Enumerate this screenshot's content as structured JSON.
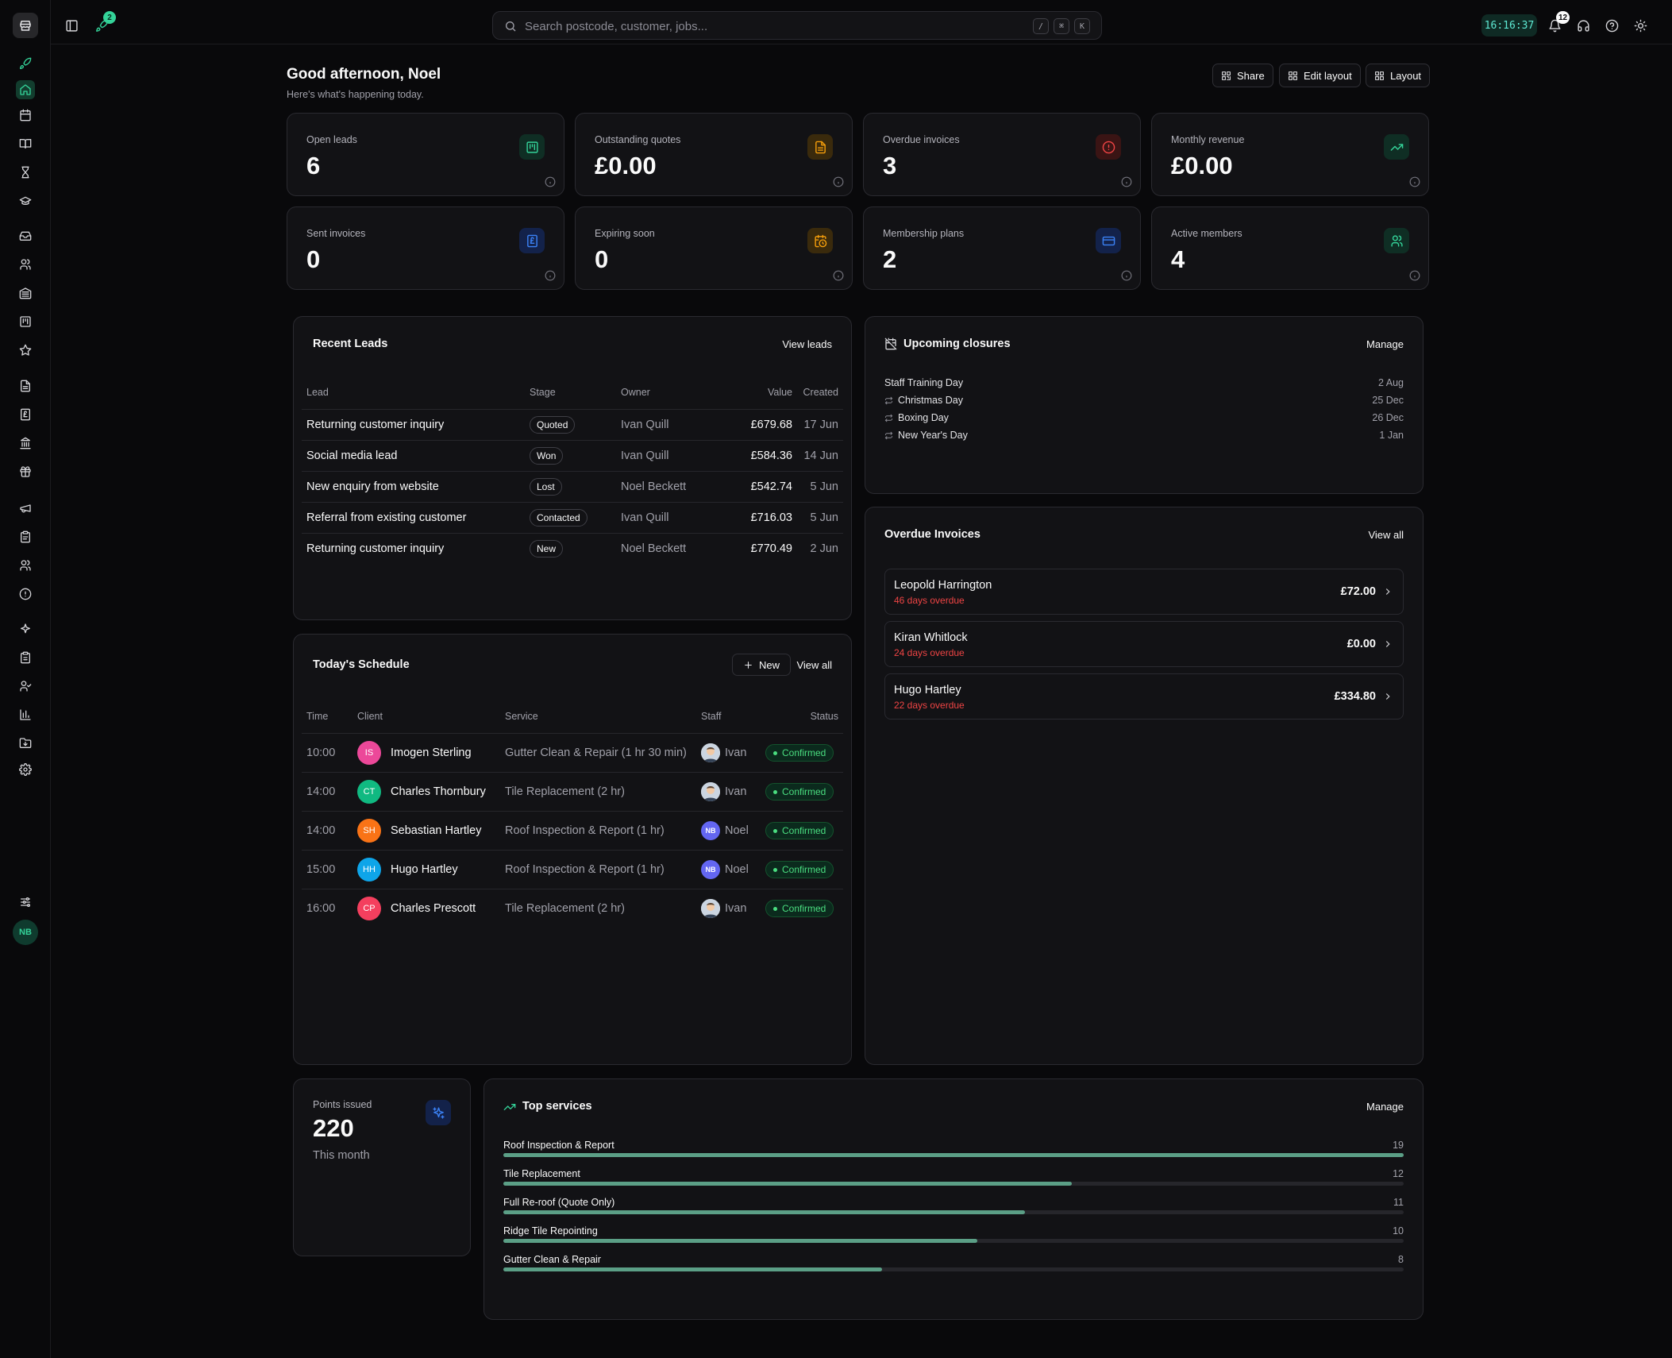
{
  "topbar": {
    "rocket_badge": "2",
    "search_placeholder": "Search postcode, customer, jobs...",
    "kbd": [
      "/",
      "⌘",
      "K"
    ],
    "clock": "16:16:37",
    "notification_count": "12"
  },
  "header": {
    "greeting": "Good afternoon, Noel",
    "subtitle": "Here's what's happening today.",
    "share_label": "Share",
    "edit_layout_label": "Edit layout",
    "layout_label": "Layout"
  },
  "stats": [
    {
      "label": "Open leads",
      "value": "6",
      "icon": "leads-board-icon",
      "color": "#34d399"
    },
    {
      "label": "Outstanding quotes",
      "value": "£0.00",
      "icon": "document-icon",
      "color": "#f59e0b"
    },
    {
      "label": "Overdue invoices",
      "value": "3",
      "icon": "alert-circle-icon",
      "color": "#ef4444"
    },
    {
      "label": "Monthly revenue",
      "value": "£0.00",
      "icon": "trending-up-icon",
      "color": "#34d399"
    },
    {
      "label": "Sent invoices",
      "value": "0",
      "icon": "invoice-icon",
      "color": "#3b82f6"
    },
    {
      "label": "Expiring soon",
      "value": "0",
      "icon": "calendar-clock-icon",
      "color": "#f59e0b"
    },
    {
      "label": "Membership plans",
      "value": "2",
      "icon": "credit-card-icon",
      "color": "#3b82f6"
    },
    {
      "label": "Active members",
      "value": "4",
      "icon": "users-icon",
      "color": "#34d399"
    }
  ],
  "recent_leads": {
    "title": "Recent Leads",
    "link": "View leads",
    "columns": [
      "Lead",
      "Stage",
      "Owner",
      "Value",
      "Created"
    ],
    "rows": [
      {
        "lead": "Returning customer inquiry",
        "stage": "Quoted",
        "owner": "Ivan Quill",
        "value": "£679.68",
        "created": "17 Jun"
      },
      {
        "lead": "Social media lead",
        "stage": "Won",
        "owner": "Ivan Quill",
        "value": "£584.36",
        "created": "14 Jun"
      },
      {
        "lead": "New enquiry from website",
        "stage": "Lost",
        "owner": "Noel Beckett",
        "value": "£542.74",
        "created": "5 Jun"
      },
      {
        "lead": "Referral from existing customer",
        "stage": "Contacted",
        "owner": "Ivan Quill",
        "value": "£716.03",
        "created": "5 Jun"
      },
      {
        "lead": "Returning customer inquiry",
        "stage": "New",
        "owner": "Noel Beckett",
        "value": "£770.49",
        "created": "2 Jun"
      }
    ]
  },
  "closures": {
    "title": "Upcoming closures",
    "link": "Manage",
    "items": [
      {
        "name": "Staff Training Day",
        "date": "2 Aug",
        "recurring": false
      },
      {
        "name": "Christmas Day",
        "date": "25 Dec",
        "recurring": true
      },
      {
        "name": "Boxing Day",
        "date": "26 Dec",
        "recurring": true
      },
      {
        "name": "New Year's Day",
        "date": "1 Jan",
        "recurring": true
      }
    ]
  },
  "overdue": {
    "title": "Overdue Invoices",
    "link": "View all",
    "items": [
      {
        "name": "Leopold Harrington",
        "overdue": "46 days overdue",
        "amount": "£72.00"
      },
      {
        "name": "Kiran Whitlock",
        "overdue": "24 days overdue",
        "amount": "£0.00"
      },
      {
        "name": "Hugo Hartley",
        "overdue": "22 days overdue",
        "amount": "£334.80"
      }
    ]
  },
  "schedule": {
    "title": "Today's Schedule",
    "new_label": "New",
    "link": "View all",
    "columns": [
      "Time",
      "Client",
      "Service",
      "Staff",
      "Status"
    ],
    "rows": [
      {
        "time": "10:00",
        "initials": "IS",
        "avatar_color": "#ec4899",
        "client": "Imogen Sterling",
        "service": "Gutter Clean & Repair (1 hr 30 min)",
        "staff": "Ivan",
        "staff_type": "photo",
        "status": "Confirmed"
      },
      {
        "time": "14:00",
        "initials": "CT",
        "avatar_color": "#10b981",
        "client": "Charles Thornbury",
        "service": "Tile Replacement (2 hr)",
        "staff": "Ivan",
        "staff_type": "photo",
        "status": "Confirmed"
      },
      {
        "time": "14:00",
        "initials": "SH",
        "avatar_color": "#f97316",
        "client": "Sebastian Hartley",
        "service": "Roof Inspection & Report (1 hr)",
        "staff": "Noel",
        "staff_type": "initials",
        "status": "Confirmed"
      },
      {
        "time": "15:00",
        "initials": "HH",
        "avatar_color": "#0ea5e9",
        "client": "Hugo Hartley",
        "service": "Roof Inspection & Report (1 hr)",
        "staff": "Noel",
        "staff_type": "initials",
        "status": "Confirmed"
      },
      {
        "time": "16:00",
        "initials": "CP",
        "avatar_color": "#f43f5e",
        "client": "Charles Prescott",
        "service": "Tile Replacement (2 hr)",
        "staff": "Ivan",
        "staff_type": "photo",
        "status": "Confirmed"
      }
    ],
    "staff_initials_noel": "NB"
  },
  "points": {
    "label": "Points issued",
    "value": "220",
    "period": "This month"
  },
  "top_services": {
    "title": "Top services",
    "link": "Manage",
    "max": 19,
    "items": [
      {
        "name": "Roof Inspection & Report",
        "count": 19
      },
      {
        "name": "Tile Replacement",
        "count": 12
      },
      {
        "name": "Full Re-roof (Quote Only)",
        "count": 11
      },
      {
        "name": "Ridge Tile Repointing",
        "count": 10
      },
      {
        "name": "Gutter Clean & Repair",
        "count": 8
      }
    ]
  },
  "sidebar": {
    "avatar_initials": "NB"
  }
}
